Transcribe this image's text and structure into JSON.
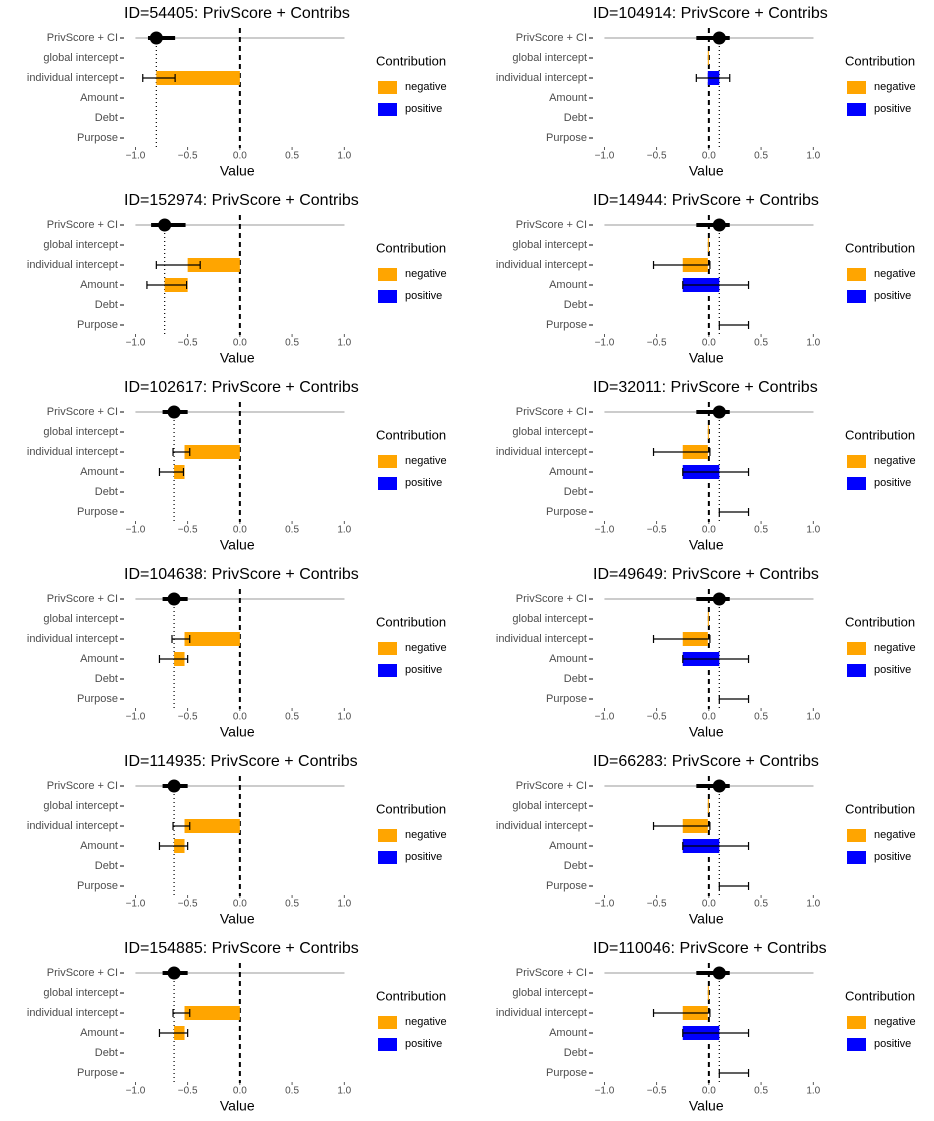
{
  "chart_data": [
    {
      "type": "waterfall",
      "title": "ID=54405: PrivScore + Contribs",
      "categories": [
        "PrivScore + CI",
        "global intercept",
        "individual intercept",
        "Amount",
        "Debt",
        "Purpose"
      ],
      "privscore": -0.8,
      "ci": [
        -0.88,
        -0.62
      ],
      "values": [
        null,
        0,
        -0.8,
        0,
        0,
        0
      ],
      "error_low": [
        null,
        null,
        -0.93,
        null,
        null,
        null
      ],
      "error_high": [
        null,
        null,
        -0.62,
        null,
        null,
        null
      ],
      "xlim": [
        -1.1,
        1.05
      ],
      "xticks": [
        {
          "value": -1,
          "label": "−1.0"
        },
        {
          "value": -0.5,
          "label": "−0.5"
        },
        {
          "value": 0,
          "label": "0.0"
        },
        0.5,
        {
          "value": 1,
          "label": "1.0"
        }
      ],
      "xlabel": "Value",
      "legend_title": "Contribution",
      "series": [
        {
          "name": "negative",
          "color": "#ffa500"
        },
        {
          "name": "positive",
          "color": "#0000ff"
        }
      ]
    },
    {
      "type": "waterfall",
      "title": "ID=104914: PrivScore + Contribs",
      "categories": [
        "PrivScore + CI",
        "global intercept",
        "individual intercept",
        "Amount",
        "Debt",
        "Purpose"
      ],
      "privscore": 0.1,
      "ci": [
        -0.12,
        0.2
      ],
      "values": [
        null,
        -0.01,
        0.11,
        0,
        0,
        0
      ],
      "error_low": [
        null,
        null,
        -0.12,
        null,
        null,
        null
      ],
      "error_high": [
        null,
        null,
        0.2,
        null,
        null,
        null
      ],
      "xlim": [
        -1.1,
        1.05
      ],
      "xticks": [
        {
          "value": -1,
          "label": "−1.0"
        },
        {
          "value": -0.5,
          "label": "−0.5"
        },
        {
          "value": 0,
          "label": "0.0"
        },
        0.5,
        {
          "value": 1,
          "label": "1.0"
        }
      ],
      "xlabel": "Value",
      "legend_title": "Contribution",
      "series": [
        {
          "name": "negative",
          "color": "#ffa500"
        },
        {
          "name": "positive",
          "color": "#0000ff"
        }
      ]
    },
    {
      "type": "waterfall",
      "title": "ID=152974: PrivScore + Contribs",
      "categories": [
        "PrivScore + CI",
        "global intercept",
        "individual intercept",
        "Amount",
        "Debt",
        "Purpose"
      ],
      "privscore": -0.72,
      "ci": [
        -0.85,
        -0.52
      ],
      "values": [
        null,
        0,
        -0.5,
        -0.22,
        0,
        0
      ],
      "error_low": [
        null,
        null,
        -0.8,
        -0.89,
        null,
        null
      ],
      "error_high": [
        null,
        null,
        -0.38,
        -0.51,
        null,
        null
      ],
      "xlim": [
        -1.1,
        1.05
      ],
      "xticks": [
        {
          "value": -1,
          "label": "−1.0"
        },
        {
          "value": -0.5,
          "label": "−0.5"
        },
        {
          "value": 0,
          "label": "0.0"
        },
        0.5,
        {
          "value": 1,
          "label": "1.0"
        }
      ],
      "xlabel": "Value",
      "legend_title": "Contribution",
      "series": [
        {
          "name": "negative",
          "color": "#ffa500"
        },
        {
          "name": "positive",
          "color": "#0000ff"
        }
      ]
    },
    {
      "type": "waterfall",
      "title": "ID=14944: PrivScore + Contribs",
      "categories": [
        "PrivScore + CI",
        "global intercept",
        "individual intercept",
        "Amount",
        "Debt",
        "Purpose"
      ],
      "privscore": 0.1,
      "ci": [
        -0.12,
        0.2
      ],
      "values": [
        null,
        -0.01,
        -0.24,
        0.35,
        0,
        0
      ],
      "error_low": [
        null,
        null,
        -0.53,
        -0.25,
        null,
        0.1
      ],
      "error_high": [
        null,
        null,
        0.01,
        0.38,
        null,
        0.38
      ],
      "xlim": [
        -1.1,
        1.05
      ],
      "xticks": [
        {
          "value": -1,
          "label": "−1.0"
        },
        {
          "value": -0.5,
          "label": "−0.5"
        },
        {
          "value": 0,
          "label": "0.0"
        },
        0.5,
        {
          "value": 1,
          "label": "1.0"
        }
      ],
      "xlabel": "Value",
      "legend_title": "Contribution",
      "series": [
        {
          "name": "negative",
          "color": "#ffa500"
        },
        {
          "name": "positive",
          "color": "#0000ff"
        }
      ]
    },
    {
      "type": "waterfall",
      "title": "ID=102617: PrivScore + Contribs",
      "categories": [
        "PrivScore + CI",
        "global intercept",
        "individual intercept",
        "Amount",
        "Debt",
        "Purpose"
      ],
      "privscore": -0.63,
      "ci": [
        -0.74,
        -0.5
      ],
      "values": [
        null,
        0,
        -0.53,
        -0.1,
        0,
        0
      ],
      "error_low": [
        null,
        null,
        -0.64,
        -0.77,
        null,
        null
      ],
      "error_high": [
        null,
        null,
        -0.48,
        -0.54,
        null,
        null
      ],
      "xlim": [
        -1.1,
        1.05
      ],
      "xticks": [
        {
          "value": -1,
          "label": "−1.0"
        },
        {
          "value": -0.5,
          "label": "−0.5"
        },
        {
          "value": 0,
          "label": "0.0"
        },
        0.5,
        {
          "value": 1,
          "label": "1.0"
        }
      ],
      "xlabel": "Value",
      "legend_title": "Contribution",
      "series": [
        {
          "name": "negative",
          "color": "#ffa500"
        },
        {
          "name": "positive",
          "color": "#0000ff"
        }
      ]
    },
    {
      "type": "waterfall",
      "title": "ID=32011: PrivScore + Contribs",
      "categories": [
        "PrivScore + CI",
        "global intercept",
        "individual intercept",
        "Amount",
        "Debt",
        "Purpose"
      ],
      "privscore": 0.1,
      "ci": [
        -0.12,
        0.2
      ],
      "values": [
        null,
        -0.01,
        -0.24,
        0.35,
        0,
        0
      ],
      "error_low": [
        null,
        null,
        -0.53,
        -0.25,
        null,
        0.1
      ],
      "error_high": [
        null,
        null,
        0.01,
        0.38,
        null,
        0.38
      ],
      "xlim": [
        -1.1,
        1.05
      ],
      "xticks": [
        {
          "value": -1,
          "label": "−1.0"
        },
        {
          "value": -0.5,
          "label": "−0.5"
        },
        {
          "value": 0,
          "label": "0.0"
        },
        0.5,
        {
          "value": 1,
          "label": "1.0"
        }
      ],
      "xlabel": "Value",
      "legend_title": "Contribution",
      "series": [
        {
          "name": "negative",
          "color": "#ffa500"
        },
        {
          "name": "positive",
          "color": "#0000ff"
        }
      ]
    },
    {
      "type": "waterfall",
      "title": "ID=104638: PrivScore + Contribs",
      "categories": [
        "PrivScore + CI",
        "global intercept",
        "individual intercept",
        "Amount",
        "Debt",
        "Purpose"
      ],
      "privscore": -0.63,
      "ci": [
        -0.74,
        -0.5
      ],
      "values": [
        null,
        0,
        -0.53,
        -0.1,
        0,
        0
      ],
      "error_low": [
        null,
        null,
        -0.65,
        -0.77,
        null,
        null
      ],
      "error_high": [
        null,
        null,
        -0.48,
        -0.5,
        null,
        null
      ],
      "xlim": [
        -1.1,
        1.05
      ],
      "xticks": [
        {
          "value": -1,
          "label": "−1.0"
        },
        {
          "value": -0.5,
          "label": "−0.5"
        },
        {
          "value": 0,
          "label": "0.0"
        },
        0.5,
        {
          "value": 1,
          "label": "1.0"
        }
      ],
      "xlabel": "Value",
      "legend_title": "Contribution",
      "series": [
        {
          "name": "negative",
          "color": "#ffa500"
        },
        {
          "name": "positive",
          "color": "#0000ff"
        }
      ]
    },
    {
      "type": "waterfall",
      "title": "ID=49649: PrivScore + Contribs",
      "categories": [
        "PrivScore + CI",
        "global intercept",
        "individual intercept",
        "Amount",
        "Debt",
        "Purpose"
      ],
      "privscore": 0.1,
      "ci": [
        -0.12,
        0.2
      ],
      "values": [
        null,
        -0.01,
        -0.24,
        0.35,
        0,
        0
      ],
      "error_low": [
        null,
        null,
        -0.53,
        -0.25,
        null,
        0.1
      ],
      "error_high": [
        null,
        null,
        0.01,
        0.38,
        null,
        0.38
      ],
      "xlim": [
        -1.1,
        1.05
      ],
      "xticks": [
        {
          "value": -1,
          "label": "−1.0"
        },
        {
          "value": -0.5,
          "label": "−0.5"
        },
        {
          "value": 0,
          "label": "0.0"
        },
        0.5,
        {
          "value": 1,
          "label": "1.0"
        }
      ],
      "xlabel": "Value",
      "legend_title": "Contribution",
      "series": [
        {
          "name": "negative",
          "color": "#ffa500"
        },
        {
          "name": "positive",
          "color": "#0000ff"
        }
      ]
    },
    {
      "type": "waterfall",
      "title": "ID=114935: PrivScore + Contribs",
      "categories": [
        "PrivScore + CI",
        "global intercept",
        "individual intercept",
        "Amount",
        "Debt",
        "Purpose"
      ],
      "privscore": -0.63,
      "ci": [
        -0.74,
        -0.5
      ],
      "values": [
        null,
        0,
        -0.53,
        -0.1,
        0,
        0
      ],
      "error_low": [
        null,
        null,
        -0.64,
        -0.77,
        null,
        null
      ],
      "error_high": [
        null,
        null,
        -0.48,
        -0.5,
        null,
        null
      ],
      "xlim": [
        -1.1,
        1.05
      ],
      "xticks": [
        {
          "value": -1,
          "label": "−1.0"
        },
        {
          "value": -0.5,
          "label": "−0.5"
        },
        {
          "value": 0,
          "label": "0.0"
        },
        0.5,
        {
          "value": 1,
          "label": "1.0"
        }
      ],
      "xlabel": "Value",
      "legend_title": "Contribution",
      "series": [
        {
          "name": "negative",
          "color": "#ffa500"
        },
        {
          "name": "positive",
          "color": "#0000ff"
        }
      ]
    },
    {
      "type": "waterfall",
      "title": "ID=66283: PrivScore + Contribs",
      "categories": [
        "PrivScore + CI",
        "global intercept",
        "individual intercept",
        "Amount",
        "Debt",
        "Purpose"
      ],
      "privscore": 0.1,
      "ci": [
        -0.12,
        0.2
      ],
      "values": [
        null,
        -0.01,
        -0.24,
        0.35,
        0,
        0
      ],
      "error_low": [
        null,
        null,
        -0.53,
        -0.25,
        null,
        0.1
      ],
      "error_high": [
        null,
        null,
        0.01,
        0.38,
        null,
        0.38
      ],
      "xlim": [
        -1.1,
        1.05
      ],
      "xticks": [
        {
          "value": -1,
          "label": "−1.0"
        },
        {
          "value": -0.5,
          "label": "−0.5"
        },
        {
          "value": 0,
          "label": "0.0"
        },
        0.5,
        {
          "value": 1,
          "label": "1.0"
        }
      ],
      "xlabel": "Value",
      "legend_title": "Contribution",
      "series": [
        {
          "name": "negative",
          "color": "#ffa500"
        },
        {
          "name": "positive",
          "color": "#0000ff"
        }
      ]
    },
    {
      "type": "waterfall",
      "title": "ID=154885: PrivScore + Contribs",
      "categories": [
        "PrivScore + CI",
        "global intercept",
        "individual intercept",
        "Amount",
        "Debt",
        "Purpose"
      ],
      "privscore": -0.63,
      "ci": [
        -0.74,
        -0.5
      ],
      "values": [
        null,
        0,
        -0.53,
        -0.1,
        0,
        0
      ],
      "error_low": [
        null,
        null,
        -0.64,
        -0.77,
        null,
        null
      ],
      "error_high": [
        null,
        null,
        -0.48,
        -0.5,
        null,
        null
      ],
      "xlim": [
        -1.1,
        1.05
      ],
      "xticks": [
        {
          "value": -1,
          "label": "−1.0"
        },
        {
          "value": -0.5,
          "label": "−0.5"
        },
        {
          "value": 0,
          "label": "0.0"
        },
        0.5,
        {
          "value": 1,
          "label": "1.0"
        }
      ],
      "xlabel": "Value",
      "legend_title": "Contribution",
      "series": [
        {
          "name": "negative",
          "color": "#ffa500"
        },
        {
          "name": "positive",
          "color": "#0000ff"
        }
      ]
    },
    {
      "type": "waterfall",
      "title": "ID=110046: PrivScore + Contribs",
      "categories": [
        "PrivScore + CI",
        "global intercept",
        "individual intercept",
        "Amount",
        "Debt",
        "Purpose"
      ],
      "privscore": 0.1,
      "ci": [
        -0.12,
        0.2
      ],
      "values": [
        null,
        -0.01,
        -0.24,
        0.35,
        0,
        0
      ],
      "error_low": [
        null,
        null,
        -0.53,
        -0.25,
        null,
        0.1
      ],
      "error_high": [
        null,
        null,
        0.01,
        0.38,
        null,
        0.38
      ],
      "xlim": [
        -1.1,
        1.05
      ],
      "xticks": [
        {
          "value": -1,
          "label": "−1.0"
        },
        {
          "value": -0.5,
          "label": "−0.5"
        },
        {
          "value": 0,
          "label": "0.0"
        },
        0.5,
        {
          "value": 1,
          "label": "1.0"
        }
      ],
      "xlabel": "Value",
      "legend_title": "Contribution",
      "series": [
        {
          "name": "negative",
          "color": "#ffa500"
        },
        {
          "name": "positive",
          "color": "#0000ff"
        }
      ]
    }
  ]
}
